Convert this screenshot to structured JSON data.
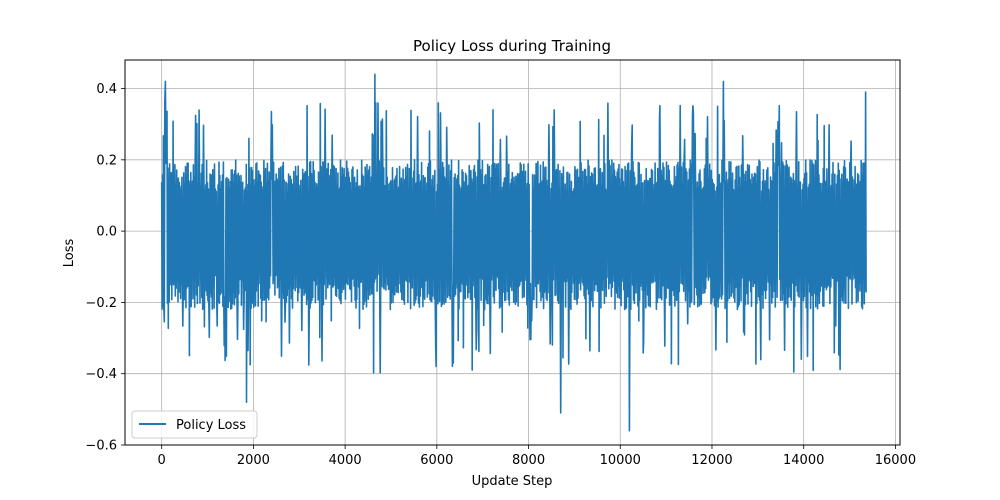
{
  "chart_data": {
    "type": "line",
    "title": "Policy Loss during Training",
    "xlabel": "Update Step",
    "ylabel": "Loss",
    "xlim": [
      -800,
      16100
    ],
    "ylim": [
      -0.6,
      0.48
    ],
    "x_ticks": [
      0,
      2000,
      4000,
      6000,
      8000,
      10000,
      12000,
      14000,
      16000
    ],
    "y_ticks": [
      -0.6,
      -0.4,
      -0.2,
      0.0,
      0.2,
      0.4
    ],
    "x_tick_labels": [
      "0",
      "2000",
      "4000",
      "6000",
      "8000",
      "10000",
      "12000",
      "14000",
      "16000"
    ],
    "y_tick_labels": [
      "−0.6",
      "−0.4",
      "−0.2",
      "0.0",
      "0.2",
      "0.4"
    ],
    "grid": true,
    "legend_position": "lower-left",
    "series": [
      {
        "name": "Policy Loss",
        "color": "#1f77b4",
        "x_range": [
          0,
          15360
        ],
        "typical_band": [
          -0.22,
          0.2
        ],
        "approx_range": [
          -0.56,
          0.44
        ],
        "notable_points": [
          {
            "x": 80,
            "y": 0.42
          },
          {
            "x": 1850,
            "y": -0.48
          },
          {
            "x": 4650,
            "y": 0.44
          },
          {
            "x": 8700,
            "y": -0.51
          },
          {
            "x": 10200,
            "y": -0.56
          },
          {
            "x": 12250,
            "y": 0.42
          },
          {
            "x": 15350,
            "y": 0.39
          }
        ]
      }
    ]
  }
}
